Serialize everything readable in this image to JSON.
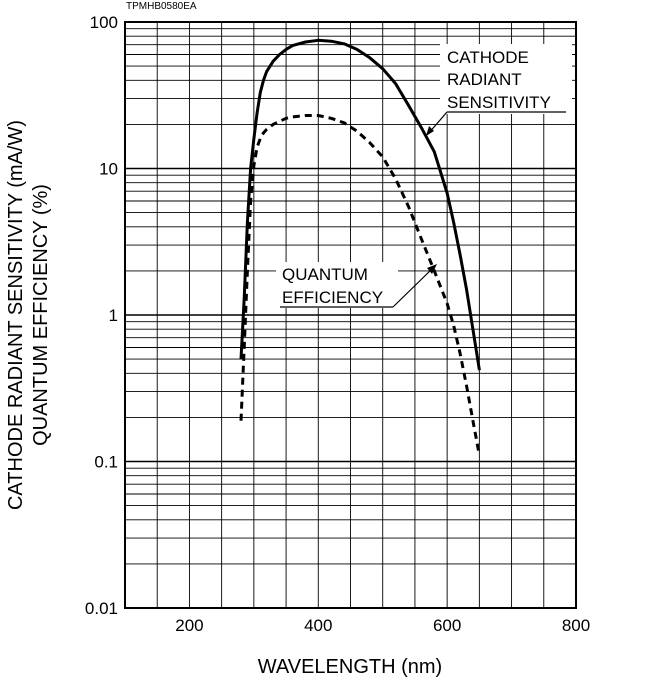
{
  "figure_code": "TPMHB0580EA",
  "chart_data": {
    "type": "line",
    "xlabel": "WAVELENGTH (nm)",
    "ylabel": [
      "CATHODE RADIANT SENSITIVITY (mA/W)",
      "QUANTUM EFFICIENCY (%)"
    ],
    "xlim": [
      100,
      800
    ],
    "ylim": [
      0.01,
      100
    ],
    "yscale": "log",
    "grid": true,
    "x_ticks": [
      200,
      400,
      600,
      800
    ],
    "x_tick_labels": [
      "200",
      "400",
      "600",
      "800"
    ],
    "y_ticks": [
      0.01,
      0.1,
      1,
      10,
      100
    ],
    "y_tick_labels": [
      "0.01",
      "0.1",
      "1",
      "10",
      "100"
    ],
    "series": [
      {
        "name": "CATHODE RADIANT SENSITIVITY",
        "style": "solid",
        "color": "#000000",
        "x": [
          280,
          285,
          290,
          295,
          300,
          305,
          310,
          315,
          320,
          330,
          340,
          350,
          360,
          380,
          400,
          420,
          440,
          460,
          480,
          500,
          520,
          540,
          560,
          580,
          600,
          610,
          620,
          630,
          640,
          650
        ],
        "y": [
          0.5,
          1.3,
          4.3,
          10,
          16,
          24,
          33,
          40,
          46,
          54,
          60,
          65,
          69,
          73,
          75,
          74,
          71,
          65,
          57,
          48,
          38,
          27,
          19,
          13,
          6.8,
          4.3,
          2.6,
          1.5,
          0.8,
          0.42
        ]
      },
      {
        "name": "QUANTUM EFFICIENCY",
        "style": "dashed",
        "color": "#000000",
        "x": [
          280,
          285,
          290,
          295,
          300,
          305,
          310,
          315,
          320,
          330,
          340,
          350,
          360,
          380,
          400,
          420,
          440,
          460,
          480,
          500,
          520,
          540,
          560,
          580,
          600,
          610,
          620,
          630,
          640,
          650
        ],
        "y": [
          0.19,
          0.6,
          2.0,
          6.0,
          10.5,
          14,
          16,
          17.5,
          18.5,
          20,
          21,
          22,
          22.5,
          23,
          23,
          22,
          20.5,
          18,
          15,
          12,
          8.5,
          5.5,
          3.3,
          2.0,
          1.2,
          0.85,
          0.55,
          0.33,
          0.19,
          0.11
        ]
      }
    ],
    "annotations": [
      {
        "lines": [
          "CATHODE",
          "RADIANT",
          "SENSITIVITY"
        ],
        "points_to": "CATHODE RADIANT SENSITIVITY"
      },
      {
        "lines": [
          "QUANTUM",
          "EFFICIENCY"
        ],
        "points_to": "QUANTUM EFFICIENCY"
      }
    ]
  }
}
